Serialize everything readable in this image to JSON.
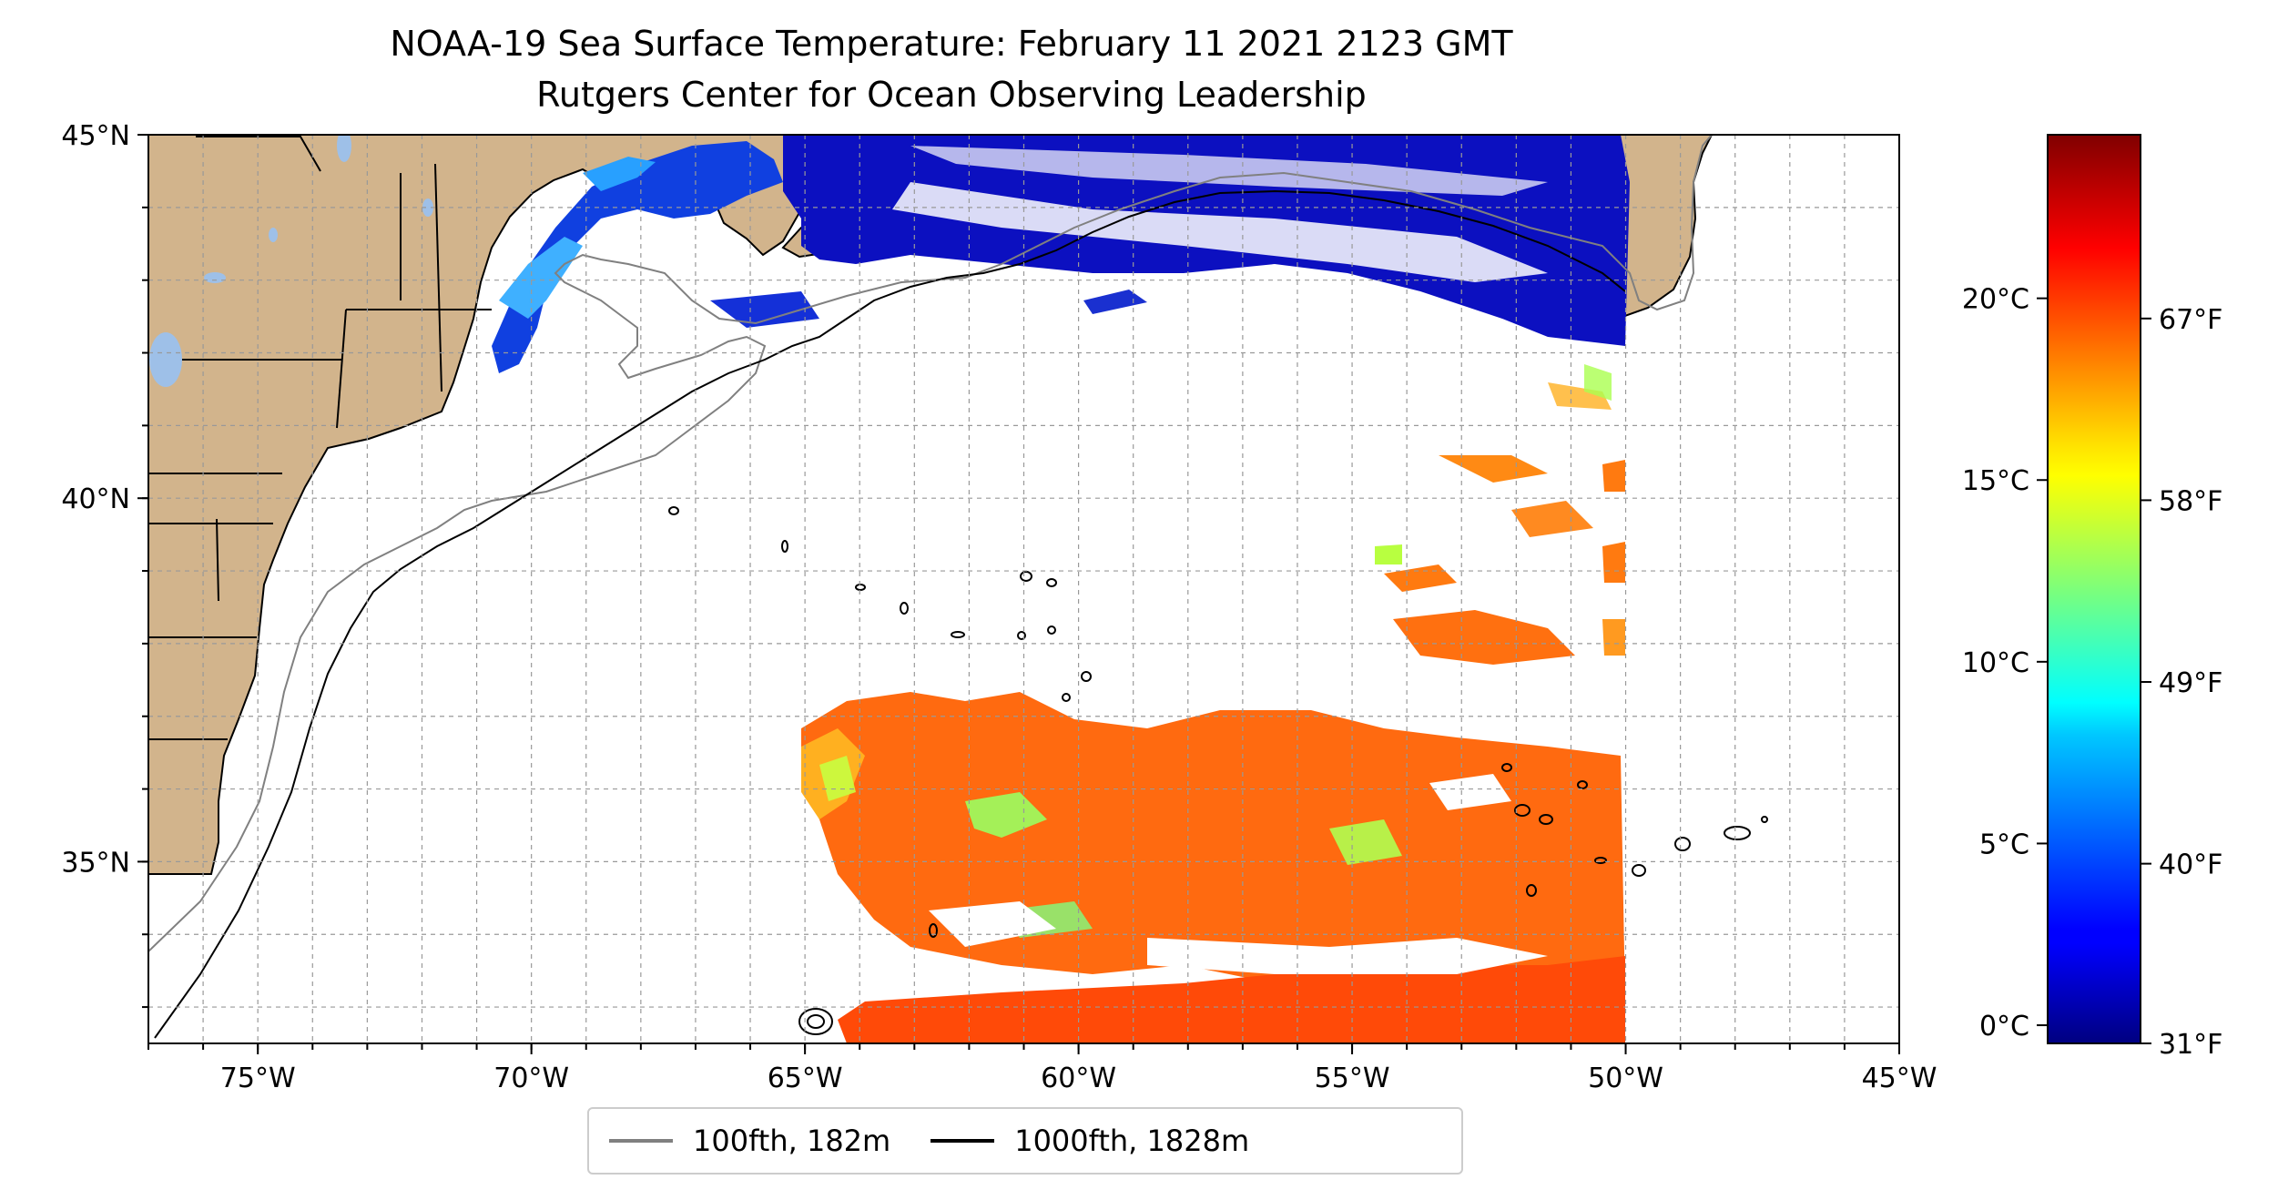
{
  "title": {
    "line1": "NOAA-19 Sea Surface Temperature: February 11 2021 2123 GMT",
    "line2": "Rutgers Center for Ocean Observing Leadership"
  },
  "map": {
    "extent": {
      "lon_min": -77,
      "lon_max": -45,
      "lat_min": 32.5,
      "lat_max": 45
    },
    "lon_ticks": [
      {
        "lon": -75,
        "label": "75°W"
      },
      {
        "lon": -70,
        "label": "70°W"
      },
      {
        "lon": -65,
        "label": "65°W"
      },
      {
        "lon": -60,
        "label": "60°W"
      },
      {
        "lon": -55,
        "label": "55°W"
      },
      {
        "lon": -50,
        "label": "50°W"
      },
      {
        "lon": -45,
        "label": "45°W"
      }
    ],
    "lat_ticks": [
      {
        "lat": 45,
        "label": "45°N"
      },
      {
        "lat": 40,
        "label": "40°N"
      },
      {
        "lat": 35,
        "label": "35°N"
      }
    ],
    "grid": true,
    "land_color": "#d2b48c",
    "lake_color": "#9ec0e8"
  },
  "colorbar": {
    "colormap": "jet",
    "range_c": [
      -0.5,
      24.5
    ],
    "celsius_ticks": [
      {
        "value": 0,
        "label": "0°C"
      },
      {
        "value": 5,
        "label": "5°C"
      },
      {
        "value": 10,
        "label": "10°C"
      },
      {
        "value": 15,
        "label": "15°C"
      },
      {
        "value": 20,
        "label": "20°C"
      }
    ],
    "fahrenheit_ticks": [
      {
        "value": 31,
        "label": "31°F"
      },
      {
        "value": 40,
        "label": "40°F"
      },
      {
        "value": 49,
        "label": "49°F"
      },
      {
        "value": 58,
        "label": "58°F"
      },
      {
        "value": 67,
        "label": "67°F"
      }
    ]
  },
  "legend": {
    "items": [
      {
        "label": "100fth, 182m",
        "color": "#808080"
      },
      {
        "label": "1000fth, 1828m",
        "color": "#000000"
      }
    ]
  }
}
